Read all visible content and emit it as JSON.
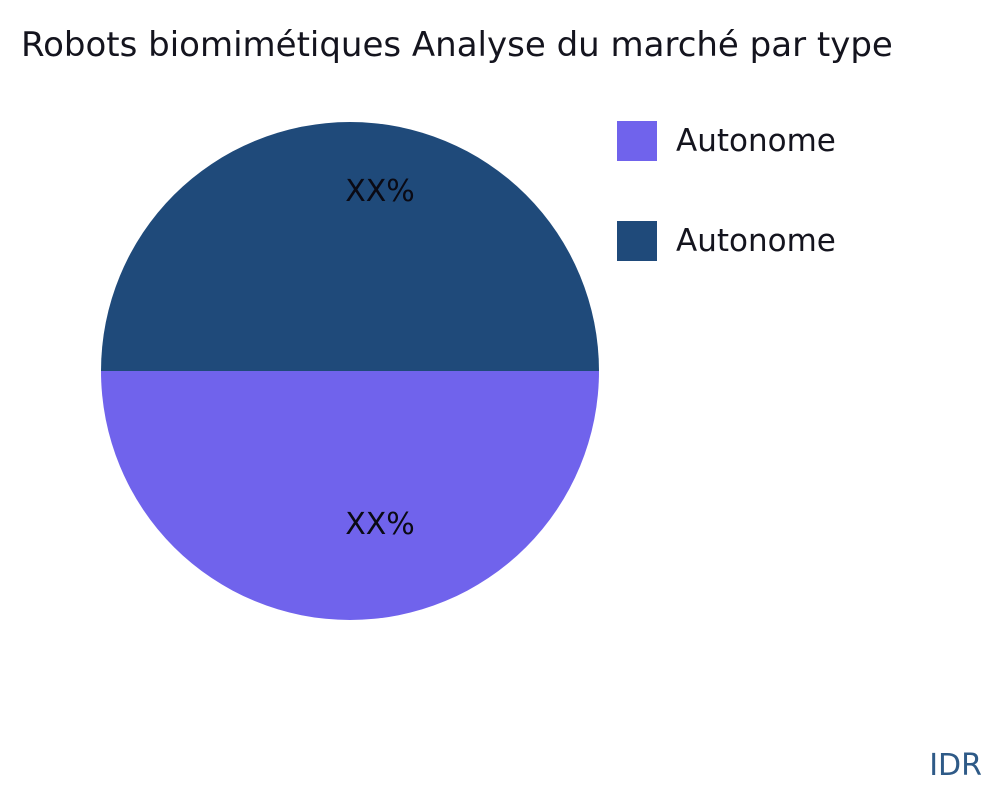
{
  "chart_data": {
    "type": "pie",
    "title": "Robots biomimétiques Analyse du marché par type",
    "slices": [
      {
        "label": "Autonome",
        "value_pct": 50,
        "value_label": "XX%",
        "color": "#7063ec",
        "position": "bottom half"
      },
      {
        "label": "Autonome",
        "value_pct": 50,
        "value_label": "XX%",
        "color": "#1f4a7a",
        "position": "top half"
      }
    ],
    "legend_position": "upper right",
    "watermark": "IDR"
  },
  "text_colors": {
    "title": "#14141e",
    "slice_label": "#0a0a14",
    "legend_label": "#14141e",
    "watermark": "#2e5a87"
  }
}
